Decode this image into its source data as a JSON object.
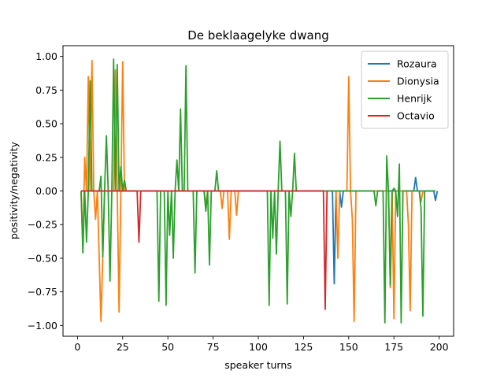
{
  "chart_data": {
    "type": "line",
    "title": "De beklaagelyke dwang",
    "xlabel": "speaker turns",
    "ylabel": "positivity/negativity",
    "xlim": [
      -8,
      208
    ],
    "ylim": [
      -1.08,
      1.08
    ],
    "xticks": [
      0,
      25,
      50,
      75,
      100,
      125,
      150,
      175,
      200
    ],
    "yticks": [
      -1.0,
      -0.75,
      -0.5,
      -0.25,
      0.0,
      0.25,
      0.5,
      0.75,
      1.0
    ],
    "ytick_labels": [
      "−1.00",
      "−0.75",
      "−0.50",
      "−0.25",
      "0.00",
      "0.25",
      "0.50",
      "0.75",
      "1.00"
    ],
    "legend_position": "top-right",
    "grid": false,
    "series": [
      {
        "name": "Rozaura",
        "color": "#1f77b4",
        "points": [
          [
            2,
            0
          ],
          [
            141,
            0
          ],
          [
            142,
            -0.69
          ],
          [
            143,
            0
          ],
          [
            145,
            0
          ],
          [
            146,
            -0.12
          ],
          [
            147,
            0
          ],
          [
            186,
            0
          ],
          [
            187,
            0.1
          ],
          [
            188,
            0
          ],
          [
            197,
            0
          ],
          [
            198,
            -0.07
          ],
          [
            199,
            0
          ]
        ]
      },
      {
        "name": "Dionysia",
        "color": "#ff7f0e",
        "points": [
          [
            2,
            0
          ],
          [
            3,
            -0.42
          ],
          [
            4,
            0.25
          ],
          [
            5,
            0
          ],
          [
            6,
            0.85
          ],
          [
            7,
            0
          ],
          [
            8,
            0.97
          ],
          [
            9,
            0
          ],
          [
            10,
            -0.21
          ],
          [
            11,
            0
          ],
          [
            13,
            -0.97
          ],
          [
            14,
            -0.48
          ],
          [
            15,
            0
          ],
          [
            20,
            0
          ],
          [
            21,
            0.9
          ],
          [
            22,
            0
          ],
          [
            23,
            -0.9
          ],
          [
            24,
            0
          ],
          [
            25,
            0.96
          ],
          [
            26,
            0
          ],
          [
            70,
            0
          ],
          [
            71,
            -0.1
          ],
          [
            72,
            0
          ],
          [
            79,
            0
          ],
          [
            80,
            -0.13
          ],
          [
            81,
            0
          ],
          [
            83,
            0
          ],
          [
            84,
            -0.36
          ],
          [
            85,
            0
          ],
          [
            87,
            0
          ],
          [
            88,
            -0.18
          ],
          [
            89,
            0
          ],
          [
            143,
            0
          ],
          [
            144,
            -0.5
          ],
          [
            145,
            0
          ],
          [
            149,
            0
          ],
          [
            150,
            0.85
          ],
          [
            151,
            0
          ],
          [
            152,
            -0.21
          ],
          [
            153,
            -0.97
          ],
          [
            154,
            0
          ],
          [
            172,
            0
          ],
          [
            173,
            -0.72
          ],
          [
            174,
            0
          ],
          [
            175,
            -0.95
          ],
          [
            176,
            0
          ],
          [
            182,
            0
          ],
          [
            183,
            -0.25
          ],
          [
            184,
            -0.89
          ],
          [
            185,
            0
          ],
          [
            189,
            0
          ],
          [
            190,
            -0.08
          ],
          [
            191,
            0
          ]
        ]
      },
      {
        "name": "Henrijk",
        "color": "#2ca02c",
        "points": [
          [
            2,
            0
          ],
          [
            3,
            -0.46
          ],
          [
            4,
            0
          ],
          [
            5,
            -0.38
          ],
          [
            6,
            0
          ],
          [
            7,
            0.82
          ],
          [
            8,
            0
          ],
          [
            12,
            0
          ],
          [
            13,
            0.11
          ],
          [
            14,
            -0.49
          ],
          [
            15,
            0
          ],
          [
            16,
            0.41
          ],
          [
            17,
            0
          ],
          [
            18,
            -0.67
          ],
          [
            19,
            0
          ],
          [
            20,
            0.98
          ],
          [
            21,
            0
          ],
          [
            22,
            0.94
          ],
          [
            23,
            0
          ],
          [
            24,
            0.18
          ],
          [
            25,
            0
          ],
          [
            26,
            0.08
          ],
          [
            27,
            0
          ],
          [
            44,
            0
          ],
          [
            45,
            -0.82
          ],
          [
            46,
            0
          ],
          [
            48,
            0
          ],
          [
            49,
            -0.85
          ],
          [
            50,
            0
          ],
          [
            51,
            -0.33
          ],
          [
            52,
            0
          ],
          [
            53,
            -0.5
          ],
          [
            54,
            0
          ],
          [
            55,
            0.23
          ],
          [
            56,
            0
          ],
          [
            57,
            0.61
          ],
          [
            58,
            0
          ],
          [
            59,
            0
          ],
          [
            60,
            0.93
          ],
          [
            61,
            0
          ],
          [
            64,
            0
          ],
          [
            65,
            -0.61
          ],
          [
            66,
            0
          ],
          [
            70,
            0
          ],
          [
            71,
            -0.15
          ],
          [
            72,
            0
          ],
          [
            73,
            -0.55
          ],
          [
            74,
            0
          ],
          [
            76,
            0
          ],
          [
            77,
            0.15
          ],
          [
            78,
            0
          ],
          [
            105,
            0
          ],
          [
            106,
            -0.85
          ],
          [
            107,
            0
          ],
          [
            108,
            -0.35
          ],
          [
            109,
            0
          ],
          [
            110,
            -0.47
          ],
          [
            111,
            0
          ],
          [
            112,
            0.37
          ],
          [
            113,
            0
          ],
          [
            115,
            0
          ],
          [
            116,
            -0.84
          ],
          [
            117,
            0
          ],
          [
            118,
            -0.19
          ],
          [
            119,
            0
          ],
          [
            120,
            0.28
          ],
          [
            121,
            0
          ],
          [
            164,
            0
          ],
          [
            165,
            -0.11
          ],
          [
            166,
            0
          ],
          [
            169,
            0
          ],
          [
            170,
            -0.98
          ],
          [
            171,
            0.26
          ],
          [
            172,
            0
          ],
          [
            173,
            -0.7
          ],
          [
            174,
            0
          ],
          [
            175,
            0.02
          ],
          [
            176,
            0
          ],
          [
            177,
            -0.19
          ],
          [
            178,
            0.2
          ],
          [
            179,
            -0.98
          ],
          [
            180,
            0
          ],
          [
            189,
            0
          ],
          [
            190,
            -0.13
          ],
          [
            191,
            -0.93
          ],
          [
            192,
            0
          ],
          [
            198,
            0
          ]
        ]
      },
      {
        "name": "Octavio",
        "color": "#d62728",
        "points": [
          [
            2,
            0
          ],
          [
            33,
            0
          ],
          [
            34,
            -0.38
          ],
          [
            35,
            0
          ],
          [
            136,
            0
          ],
          [
            137,
            -0.88
          ],
          [
            138,
            0
          ]
        ]
      }
    ]
  }
}
